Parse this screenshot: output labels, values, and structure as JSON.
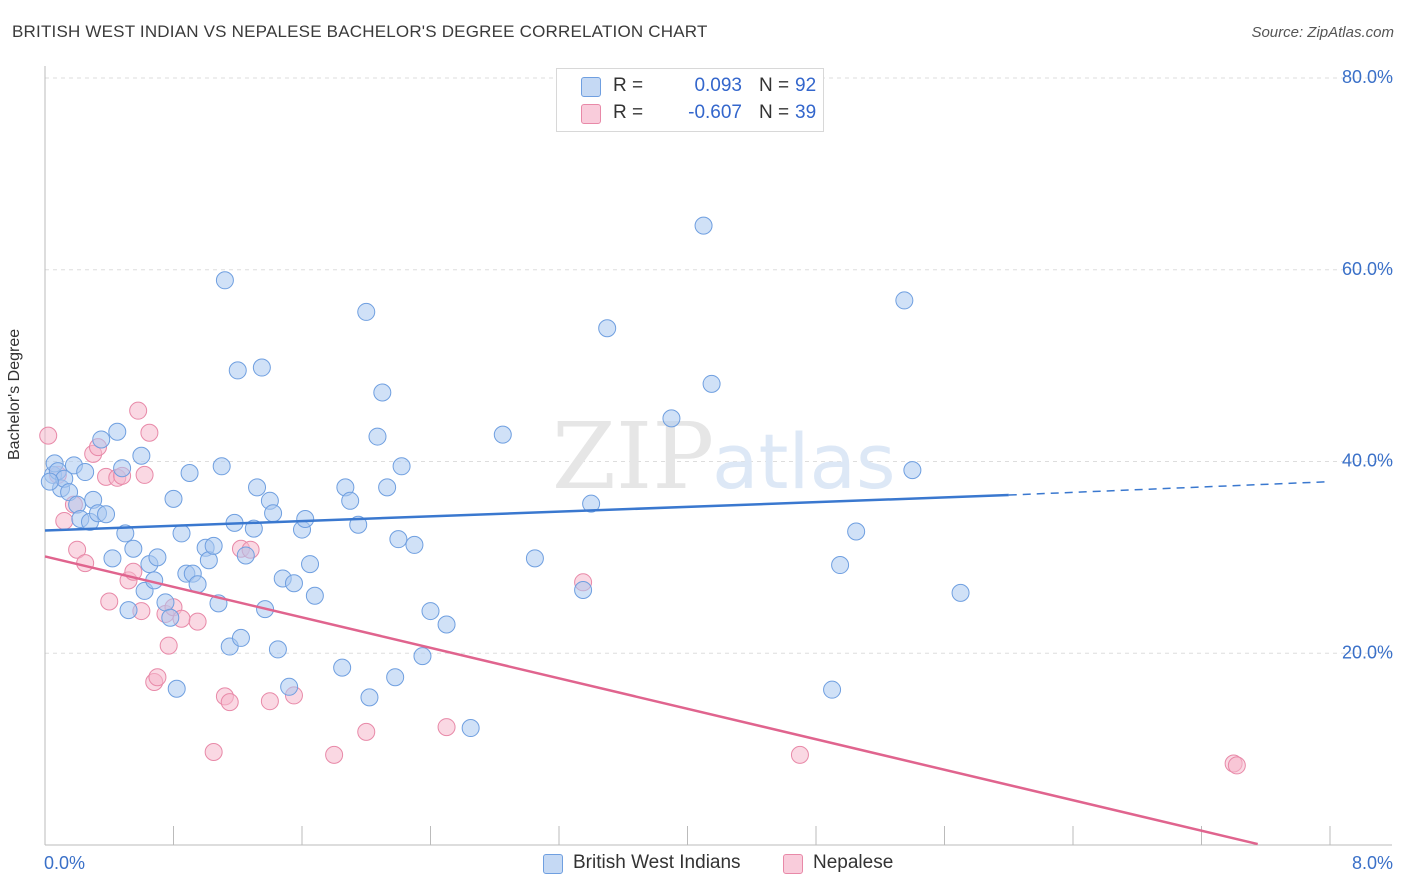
{
  "header": {
    "title": "BRITISH WEST INDIAN VS NEPALESE BACHELOR'S DEGREE CORRELATION CHART",
    "source": "Source: ZipAtlas.com"
  },
  "colors": {
    "blue_fill": "#a9c8f0",
    "blue_stroke": "#6f9fe0",
    "blue_line": "#3a78cf",
    "pink_fill": "#f5b8cc",
    "pink_stroke": "#e889a8",
    "pink_line": "#e0648e",
    "axis_text": "#3a70c8",
    "grid": "#dddddd"
  },
  "legend": {
    "series1": {
      "r_label": "R =",
      "r_value": "0.093",
      "n_label": "N =",
      "n_value": "92"
    },
    "series2": {
      "r_label": "R =",
      "r_value": "-0.607",
      "n_label": "N =",
      "n_value": "39"
    }
  },
  "watermark": {
    "zip": "ZIP",
    "atlas": "atlas"
  },
  "chart_data": {
    "type": "scatter",
    "ylabel": "Bachelor's Degree",
    "xlabel": "",
    "xlim": [
      0,
      8
    ],
    "ylim": [
      0,
      80
    ],
    "x_tick_labels": {
      "left": "0.0%",
      "right": "8.0%"
    },
    "y_ticks": [
      {
        "value": 80,
        "label": "80.0%"
      },
      {
        "value": 60,
        "label": "60.0%"
      },
      {
        "value": 40,
        "label": "40.0%"
      },
      {
        "value": 20,
        "label": "20.0%"
      }
    ],
    "grid": true,
    "series": [
      {
        "name": "British West Indians",
        "color": "#a9c8f0",
        "trend": {
          "x0": 0.0,
          "y0": 32.8,
          "x1": 6.0,
          "y1": 36.5,
          "dash_to_x": 8.0,
          "dash_to_y": 37.9
        },
        "points": [
          [
            0.05,
            38.6
          ],
          [
            0.06,
            39.8
          ],
          [
            0.08,
            39.0
          ],
          [
            0.1,
            37.2
          ],
          [
            0.12,
            38.2
          ],
          [
            0.15,
            36.8
          ],
          [
            0.18,
            39.6
          ],
          [
            0.2,
            35.5
          ],
          [
            0.22,
            34.0
          ],
          [
            0.25,
            38.9
          ],
          [
            0.28,
            33.7
          ],
          [
            0.3,
            36.0
          ],
          [
            0.33,
            34.6
          ],
          [
            0.35,
            42.3
          ],
          [
            0.38,
            34.5
          ],
          [
            0.42,
            29.9
          ],
          [
            0.45,
            43.1
          ],
          [
            0.48,
            39.3
          ],
          [
            0.5,
            32.5
          ],
          [
            0.52,
            24.5
          ],
          [
            0.55,
            30.9
          ],
          [
            0.6,
            40.6
          ],
          [
            0.62,
            26.5
          ],
          [
            0.65,
            29.3
          ],
          [
            0.68,
            27.6
          ],
          [
            0.7,
            30.0
          ],
          [
            0.75,
            25.3
          ],
          [
            0.78,
            23.7
          ],
          [
            0.8,
            36.1
          ],
          [
            0.82,
            16.3
          ],
          [
            0.85,
            32.5
          ],
          [
            0.88,
            28.3
          ],
          [
            0.9,
            38.8
          ],
          [
            0.92,
            28.3
          ],
          [
            0.95,
            27.2
          ],
          [
            1.0,
            31.0
          ],
          [
            1.02,
            29.7
          ],
          [
            1.05,
            31.2
          ],
          [
            1.08,
            25.2
          ],
          [
            1.1,
            39.5
          ],
          [
            1.12,
            58.9
          ],
          [
            1.15,
            20.7
          ],
          [
            1.18,
            33.6
          ],
          [
            1.2,
            49.5
          ],
          [
            1.22,
            21.6
          ],
          [
            1.25,
            30.2
          ],
          [
            1.3,
            33.0
          ],
          [
            1.32,
            37.3
          ],
          [
            1.35,
            49.8
          ],
          [
            1.37,
            24.6
          ],
          [
            1.4,
            35.9
          ],
          [
            1.42,
            34.6
          ],
          [
            1.45,
            20.4
          ],
          [
            1.48,
            27.8
          ],
          [
            1.52,
            16.5
          ],
          [
            1.55,
            27.3
          ],
          [
            1.6,
            32.9
          ],
          [
            1.62,
            34.0
          ],
          [
            1.65,
            29.3
          ],
          [
            1.68,
            26.0
          ],
          [
            1.85,
            18.5
          ],
          [
            1.87,
            37.3
          ],
          [
            1.9,
            35.9
          ],
          [
            1.95,
            33.4
          ],
          [
            2.0,
            55.6
          ],
          [
            2.02,
            15.4
          ],
          [
            2.07,
            42.6
          ],
          [
            2.1,
            47.2
          ],
          [
            2.13,
            37.3
          ],
          [
            2.18,
            17.5
          ],
          [
            2.2,
            31.9
          ],
          [
            2.22,
            39.5
          ],
          [
            2.3,
            31.3
          ],
          [
            2.35,
            19.7
          ],
          [
            2.4,
            24.4
          ],
          [
            2.5,
            23.0
          ],
          [
            2.65,
            12.2
          ],
          [
            2.85,
            42.8
          ],
          [
            3.05,
            29.9
          ],
          [
            3.35,
            26.6
          ],
          [
            3.4,
            35.6
          ],
          [
            3.5,
            53.9
          ],
          [
            3.9,
            44.5
          ],
          [
            4.1,
            64.6
          ],
          [
            4.15,
            48.1
          ],
          [
            4.9,
            16.2
          ],
          [
            4.95,
            29.2
          ],
          [
            5.05,
            32.7
          ],
          [
            5.35,
            56.8
          ],
          [
            5.4,
            39.1
          ],
          [
            5.7,
            26.3
          ],
          [
            0.03,
            37.9
          ]
        ]
      },
      {
        "name": "Nepalese",
        "color": "#f5b8cc",
        "trend": {
          "x0": 0.0,
          "y0": 30.1,
          "x1": 7.55,
          "y1": 0.1
        },
        "points": [
          [
            0.02,
            42.7
          ],
          [
            0.08,
            38.6
          ],
          [
            0.12,
            33.8
          ],
          [
            0.18,
            35.5
          ],
          [
            0.2,
            30.8
          ],
          [
            0.25,
            29.4
          ],
          [
            0.3,
            40.8
          ],
          [
            0.33,
            41.5
          ],
          [
            0.38,
            38.4
          ],
          [
            0.4,
            25.4
          ],
          [
            0.45,
            38.3
          ],
          [
            0.48,
            38.5
          ],
          [
            0.52,
            27.6
          ],
          [
            0.55,
            28.5
          ],
          [
            0.58,
            45.3
          ],
          [
            0.6,
            24.4
          ],
          [
            0.62,
            38.6
          ],
          [
            0.65,
            43.0
          ],
          [
            0.68,
            17.0
          ],
          [
            0.7,
            17.5
          ],
          [
            0.75,
            24.1
          ],
          [
            0.77,
            20.8
          ],
          [
            0.8,
            24.8
          ],
          [
            0.85,
            23.6
          ],
          [
            0.95,
            23.3
          ],
          [
            1.05,
            9.7
          ],
          [
            1.12,
            15.5
          ],
          [
            1.15,
            14.9
          ],
          [
            1.22,
            30.9
          ],
          [
            1.28,
            30.8
          ],
          [
            1.4,
            15.0
          ],
          [
            1.55,
            15.6
          ],
          [
            1.8,
            9.4
          ],
          [
            2.0,
            11.8
          ],
          [
            2.5,
            12.3
          ],
          [
            3.35,
            27.4
          ],
          [
            4.7,
            9.4
          ],
          [
            7.4,
            8.5
          ],
          [
            7.42,
            8.3
          ]
        ]
      }
    ]
  }
}
